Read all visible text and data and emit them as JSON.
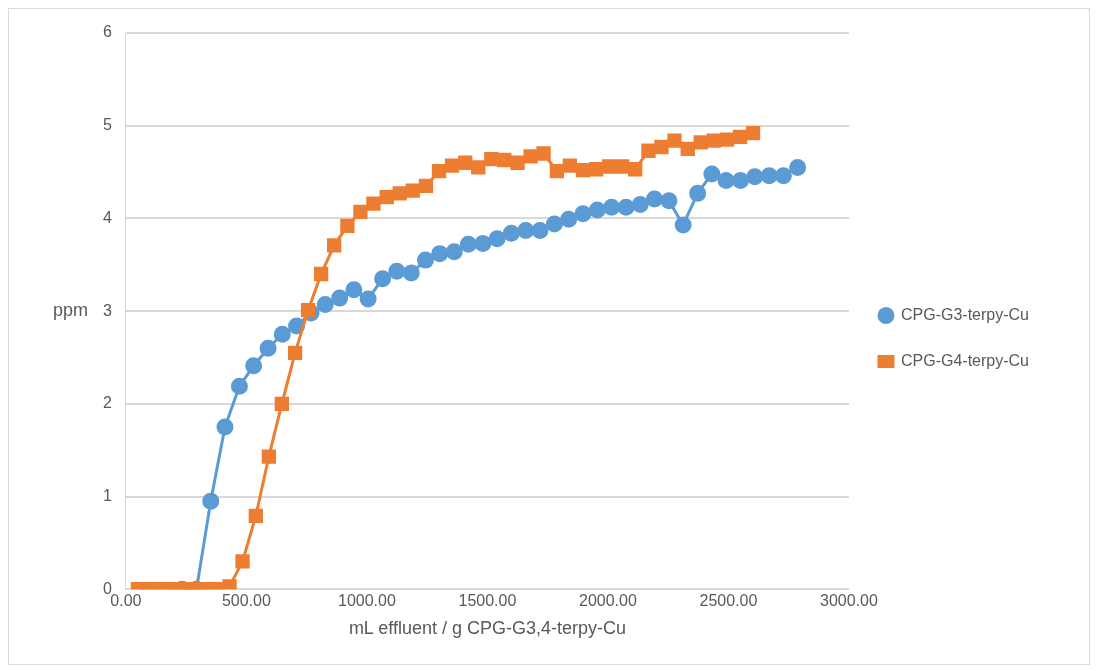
{
  "chart_data": {
    "type": "line",
    "xlabel": "mL effluent / g CPG-G3,4-terpy-Cu",
    "ylabel": "ppm",
    "xlim": [
      0,
      3000
    ],
    "xticks": [
      {
        "value": 0,
        "label": "0.00"
      },
      {
        "value": 500,
        "label": "500.00"
      },
      {
        "value": 1000,
        "label": "1000.00"
      },
      {
        "value": 1500,
        "label": "1500.00"
      },
      {
        "value": 2000,
        "label": "2000.00"
      },
      {
        "value": 2500,
        "label": "2500.00"
      },
      {
        "value": 3000,
        "label": "3000.00"
      }
    ],
    "ylim": [
      0,
      6
    ],
    "yticks": [
      0,
      1,
      2,
      3,
      4,
      5,
      6
    ],
    "grid": "y",
    "legend": "right",
    "series": [
      {
        "name": "CPG-G3-terpy-Cu",
        "color": "#5b9bd5",
        "marker": "circle",
        "x": [
          233,
          293,
          352,
          411,
          471,
          530,
          590,
          649,
          708,
          768,
          827,
          887,
          946,
          1005,
          1065,
          1124,
          1184,
          1243,
          1302,
          1362,
          1421,
          1481,
          1540,
          1599,
          1659,
          1718,
          1778,
          1837,
          1896,
          1956,
          2015,
          2075,
          2134,
          2193,
          2253,
          2312,
          2372,
          2431,
          2490,
          2550,
          2609,
          2669,
          2728,
          2787
        ],
        "values": [
          0,
          0,
          0.95,
          1.75,
          2.19,
          2.41,
          2.6,
          2.75,
          2.84,
          2.98,
          3.07,
          3.14,
          3.23,
          3.13,
          3.35,
          3.43,
          3.41,
          3.55,
          3.62,
          3.64,
          3.72,
          3.73,
          3.78,
          3.84,
          3.87,
          3.87,
          3.94,
          3.99,
          4.05,
          4.09,
          4.12,
          4.12,
          4.15,
          4.21,
          4.19,
          3.93,
          4.27,
          4.48,
          4.41,
          4.41,
          4.45,
          4.46,
          4.46,
          4.55
        ]
      },
      {
        "name": "CPG-G4-terpy-Cu",
        "color": "#ed7d31",
        "marker": "square",
        "x": [
          50,
          104,
          159,
          213,
          267,
          322,
          376,
          430,
          484,
          539,
          593,
          647,
          702,
          756,
          810,
          864,
          919,
          973,
          1027,
          1082,
          1136,
          1190,
          1245,
          1299,
          1353,
          1408,
          1462,
          1516,
          1570,
          1625,
          1679,
          1733,
          1788,
          1842,
          1896,
          1951,
          2005,
          2059,
          2113,
          2168,
          2222,
          2276,
          2331,
          2385,
          2439,
          2494,
          2548,
          2602
        ],
        "values": [
          0,
          0,
          0,
          0,
          0,
          0,
          0,
          0.03,
          0.3,
          0.79,
          1.43,
          2.0,
          2.55,
          3.01,
          3.4,
          3.71,
          3.92,
          4.07,
          4.16,
          4.23,
          4.27,
          4.3,
          4.35,
          4.51,
          4.57,
          4.6,
          4.55,
          4.64,
          4.63,
          4.6,
          4.67,
          4.7,
          4.51,
          4.57,
          4.52,
          4.53,
          4.56,
          4.56,
          4.53,
          4.73,
          4.77,
          4.84,
          4.75,
          4.82,
          4.84,
          4.85,
          4.88,
          4.92
        ]
      }
    ]
  }
}
